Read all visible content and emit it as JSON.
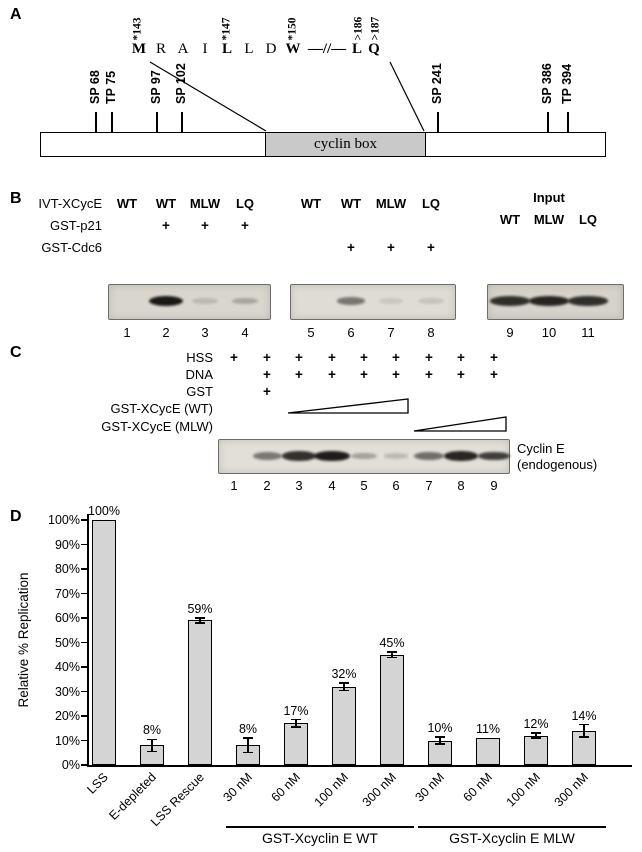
{
  "panelA": {
    "label": "A",
    "sites": [
      "SP 68",
      "TP 75",
      "SP 97",
      "SP 102",
      "SP 241",
      "SP 386",
      "TP 394"
    ],
    "domain_label": "cyclin box",
    "sequence": {
      "letters": [
        "M",
        "R",
        "A",
        "I",
        "L",
        "L",
        "D",
        "W"
      ],
      "bold_indices": [
        0,
        4,
        7
      ],
      "break_symbol": "—//—",
      "tail_letters": [
        "L",
        "Q"
      ],
      "annotations": [
        "*143",
        "*147",
        "*150",
        ">186",
        ">187"
      ]
    }
  },
  "panelB": {
    "label": "B",
    "row_labels": [
      "IVT-XCycE",
      "GST-p21",
      "GST-Cdc6"
    ],
    "gels": [
      {
        "headers": [
          "WT",
          "WT",
          "MLW",
          "LQ"
        ],
        "plus_row": 1,
        "plus": [
          "",
          "+",
          "+",
          "+"
        ],
        "lane_numbers": [
          "1",
          "2",
          "3",
          "4"
        ],
        "bands": [
          0,
          1,
          0.15,
          0.25
        ]
      },
      {
        "headers": [
          "WT",
          "WT",
          "MLW",
          "LQ"
        ],
        "plus_row": 2,
        "plus": [
          "",
          "+",
          "+",
          "+"
        ],
        "lane_numbers": [
          "5",
          "6",
          "7",
          "8"
        ],
        "bands": [
          0,
          0.5,
          0.1,
          0.12
        ]
      },
      {
        "group_label": "Input",
        "headers": [
          "WT",
          "MLW",
          "LQ"
        ],
        "plus_row": -1,
        "plus": [
          "",
          "",
          ""
        ],
        "lane_numbers": [
          "9",
          "10",
          "11"
        ],
        "bands": [
          0.85,
          0.9,
          0.85
        ]
      }
    ]
  },
  "panelC": {
    "label": "C",
    "plus_rows": [
      {
        "label": "HSS",
        "plus": [
          "+",
          "+",
          "+",
          "+",
          "+",
          "+",
          "+",
          "+",
          "+"
        ]
      },
      {
        "label": "DNA",
        "plus": [
          "",
          "+",
          "+",
          "+",
          "+",
          "+",
          "+",
          "+",
          "+"
        ]
      },
      {
        "label": "GST",
        "plus": [
          "",
          "+",
          "",
          "",
          "",
          "",
          "",
          "",
          ""
        ]
      }
    ],
    "gradient_rows": [
      {
        "label": "GST-XCycE (WT)"
      },
      {
        "label": "GST-XCycE (MLW)"
      }
    ],
    "bands": [
      0,
      0.5,
      0.85,
      0.95,
      0.3,
      0.18,
      0.55,
      0.9,
      0.78
    ],
    "lane_numbers": [
      "1",
      "2",
      "3",
      "4",
      "5",
      "6",
      "7",
      "8",
      "9"
    ],
    "gel_label_lines": [
      "Cyclin E",
      "(endogenous)"
    ]
  },
  "panelD": {
    "label": "D"
  },
  "chart_data": {
    "type": "bar",
    "title": "",
    "ylabel": "Relative % Replication",
    "xlabel": "",
    "ylim": [
      0,
      100
    ],
    "y_ticks": [
      "0%",
      "10%",
      "20%",
      "30%",
      "40%",
      "50%",
      "60%",
      "70%",
      "80%",
      "90%",
      "100%"
    ],
    "categories": [
      "LSS",
      "E-depleted",
      "LSS Rescue",
      "30 nM",
      "60 nM",
      "100 nM",
      "300 nM",
      "30 nM",
      "60 nM",
      "100 nM",
      "300 nM"
    ],
    "values": [
      100,
      8,
      59,
      8,
      17,
      32,
      45,
      10,
      11,
      12,
      14
    ],
    "value_labels": [
      "100%",
      "8%",
      "59%",
      "8%",
      "17%",
      "32%",
      "45%",
      "10%",
      "11%",
      "12%",
      "14%"
    ],
    "errors": [
      0,
      2.5,
      1,
      3,
      1.5,
      1.5,
      1.2,
      1.5,
      0,
      1,
      2.5
    ],
    "groups": [
      {
        "label": "GST-Xcyclin E WT",
        "from": 3,
        "to": 6
      },
      {
        "label": "GST-Xcyclin E MLW",
        "from": 7,
        "to": 10
      }
    ],
    "bar_color": "#d4d4d4",
    "grid": false,
    "legend": false
  }
}
